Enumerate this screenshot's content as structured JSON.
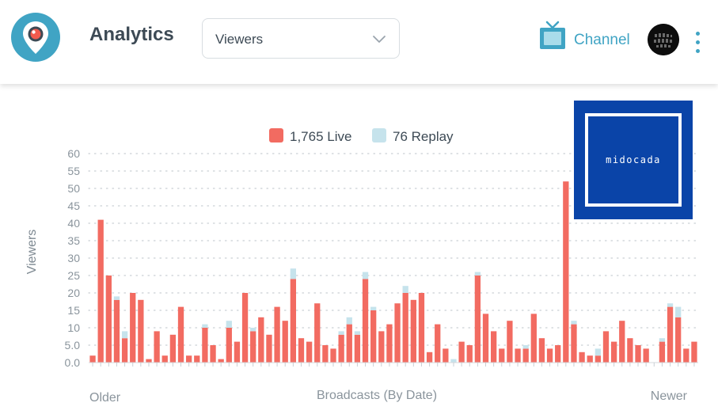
{
  "header": {
    "title": "Analytics",
    "metric_select": {
      "value": "Viewers"
    },
    "channel_label": "Channel"
  },
  "colors": {
    "brand": "#40a4c4",
    "live": "#f26b61",
    "replay": "#c6e3ec",
    "watermark_bg": "#0a44a8"
  },
  "icons": [
    "periscope-logo-icon",
    "chevron-down-icon",
    "tv-icon",
    "avatar",
    "more-vertical-icon"
  ],
  "watermark": {
    "text": "midocada"
  },
  "chart_data": {
    "type": "bar",
    "stacked": true,
    "legend": [
      {
        "label": "1,765 Live",
        "color": "#f26b61"
      },
      {
        "label": "76 Replay",
        "color": "#c6e3ec"
      }
    ],
    "ylabel": "Viewers",
    "xlabel": "Broadcasts (By Date)",
    "x_start_label": "Older",
    "x_end_label": "Newer",
    "ylim": [
      0,
      60
    ],
    "yticks": [
      "0.0",
      "5.0",
      "10",
      "15",
      "20",
      "25",
      "30",
      "35",
      "40",
      "45",
      "50",
      "55",
      "60"
    ],
    "grid": true,
    "series": [
      {
        "name": "Live",
        "values": [
          2,
          41,
          25,
          18,
          7,
          20,
          18,
          1,
          9,
          2,
          8,
          16,
          2,
          2,
          10,
          5,
          1,
          10,
          6,
          20,
          9,
          13,
          8,
          16,
          12,
          24,
          7,
          6,
          17,
          5,
          4,
          8,
          11,
          8,
          24,
          15,
          9,
          11,
          17,
          20,
          18,
          20,
          3,
          11,
          4,
          0,
          6,
          5,
          25,
          14,
          9,
          4,
          12,
          4,
          4,
          14,
          7,
          4,
          5,
          52,
          11,
          3,
          2,
          2,
          9,
          6,
          12,
          7,
          5,
          4,
          0,
          6,
          16,
          13,
          4,
          6
        ]
      },
      {
        "name": "Replay",
        "values": [
          0,
          0,
          0,
          1,
          2,
          0,
          0,
          0,
          0,
          0,
          0,
          0,
          0,
          0,
          1,
          0,
          0,
          2,
          0,
          0,
          1,
          0,
          0,
          0,
          0,
          3,
          0,
          0,
          0,
          0,
          0,
          1,
          2,
          1,
          2,
          1,
          0,
          0,
          0,
          2,
          0,
          0,
          0,
          0,
          0,
          1,
          0,
          0,
          1,
          0,
          0,
          0,
          0,
          0,
          1,
          0,
          0,
          0,
          0,
          0,
          1,
          0,
          0,
          2,
          0,
          0,
          0,
          0,
          0,
          0,
          0,
          1,
          1,
          3,
          0,
          0
        ]
      }
    ]
  }
}
